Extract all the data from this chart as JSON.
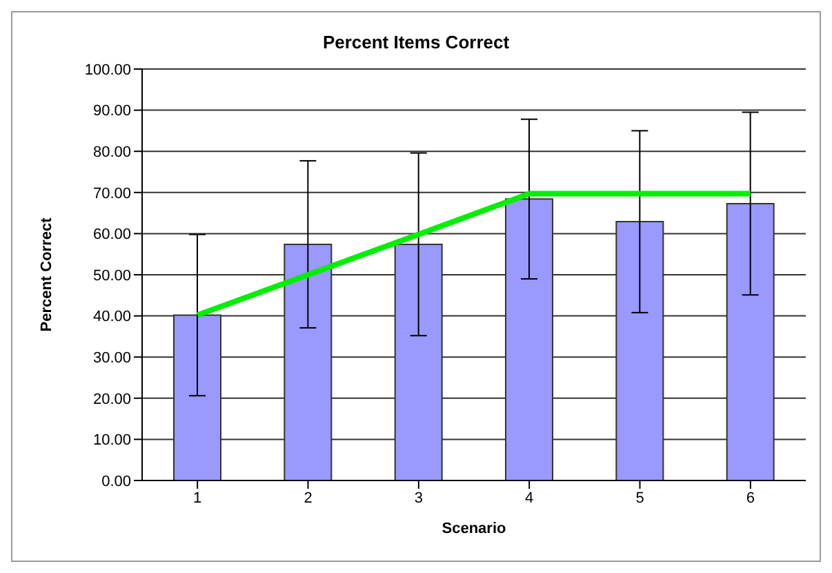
{
  "chart_data": {
    "type": "bar",
    "title": "Percent Items Correct",
    "xlabel": "Scenario",
    "ylabel": "Percent Correct",
    "categories": [
      "1",
      "2",
      "3",
      "4",
      "5",
      "6"
    ],
    "series": [
      {
        "color": "#9999ff",
        "values": [
          40.2,
          57.4,
          57.4,
          68.4,
          62.9,
          67.3
        ],
        "errors": [
          19.6,
          20.3,
          22.2,
          19.4,
          22.1,
          22.2
        ]
      },
      {
        "type": "line",
        "color": "#00ee00",
        "values": [
          40.2,
          50.0,
          59.8,
          69.7,
          69.7,
          69.7
        ]
      }
    ],
    "ylim": [
      0,
      100
    ],
    "yticks": [
      {
        "value": 0,
        "label": "0.00"
      },
      {
        "value": 10,
        "label": "10.00"
      },
      {
        "value": 20,
        "label": "20.00"
      },
      {
        "value": 30,
        "label": "30.00"
      },
      {
        "value": 40,
        "label": "40.00"
      },
      {
        "value": 50,
        "label": "50.00"
      },
      {
        "value": 60,
        "label": "60.00"
      },
      {
        "value": 70,
        "label": "70.00"
      },
      {
        "value": 80,
        "label": "80.00"
      },
      {
        "value": 90,
        "label": "90.00"
      },
      {
        "value": 100,
        "label": "100.00"
      }
    ],
    "grid": "y",
    "legend": false,
    "marker": "none",
    "line_style": "solid"
  }
}
